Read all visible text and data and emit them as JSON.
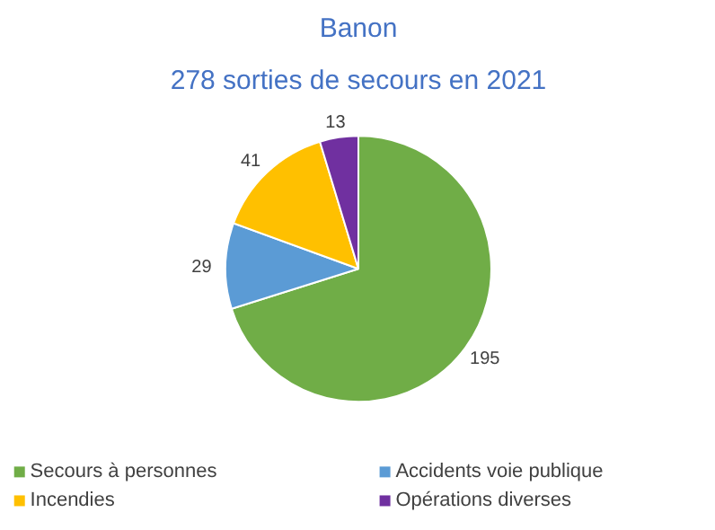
{
  "chart_data": {
    "type": "pie",
    "title": "Banon",
    "subtitle": "278 sorties de secours en 2021",
    "categories": [
      "Secours à personnes",
      "Accidents voie publique",
      "Incendies",
      "Opérations diverses"
    ],
    "values": [
      195,
      29,
      41,
      13
    ],
    "colors": [
      "#70ad47",
      "#5b9bd5",
      "#ffc000",
      "#7030a0"
    ],
    "data_labels": true,
    "legend": "bottom"
  }
}
